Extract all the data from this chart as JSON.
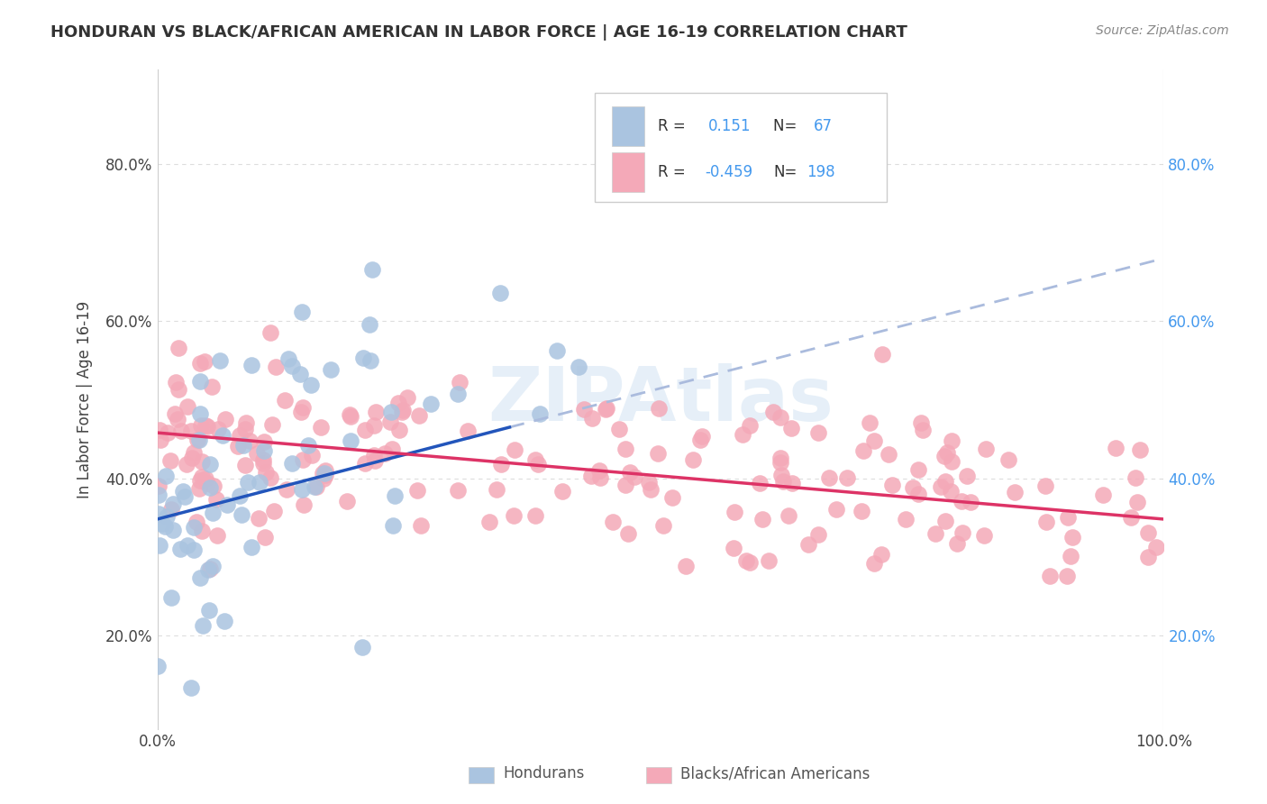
{
  "title": "HONDURAN VS BLACK/AFRICAN AMERICAN IN LABOR FORCE | AGE 16-19 CORRELATION CHART",
  "source": "Source: ZipAtlas.com",
  "ylabel": "In Labor Force | Age 16-19",
  "xlim": [
    0.0,
    1.0
  ],
  "ylim": [
    0.08,
    0.92
  ],
  "xticks": [
    0.0,
    1.0
  ],
  "xtick_labels": [
    "0.0%",
    "100.0%"
  ],
  "yticks": [
    0.2,
    0.4,
    0.6,
    0.8
  ],
  "ytick_labels": [
    "20.0%",
    "40.0%",
    "60.0%",
    "80.0%"
  ],
  "grid_color": "#dddddd",
  "grid_style": "--",
  "background_color": "#ffffff",
  "honduran_color": "#aac4e0",
  "black_color": "#f4a9b8",
  "honduran_line_color": "#2255bb",
  "black_line_color": "#dd3366",
  "dashed_line_color": "#aabbdd",
  "R_honduran": 0.151,
  "N_honduran": 67,
  "R_black": -0.459,
  "N_black": 198,
  "watermark": "ZIPAtlas",
  "legend_label_honduran": "Hondurans",
  "legend_label_black": "Blacks/African Americans",
  "hon_line_x0": 0.0,
  "hon_line_y0": 0.348,
  "hon_line_x1": 0.35,
  "hon_line_y1": 0.465,
  "dash_line_x0": 0.35,
  "dash_line_y0": 0.465,
  "dash_line_x1": 1.0,
  "dash_line_y1": 0.68,
  "black_line_x0": 0.0,
  "black_line_y0": 0.458,
  "black_line_x1": 1.0,
  "black_line_y1": 0.348
}
